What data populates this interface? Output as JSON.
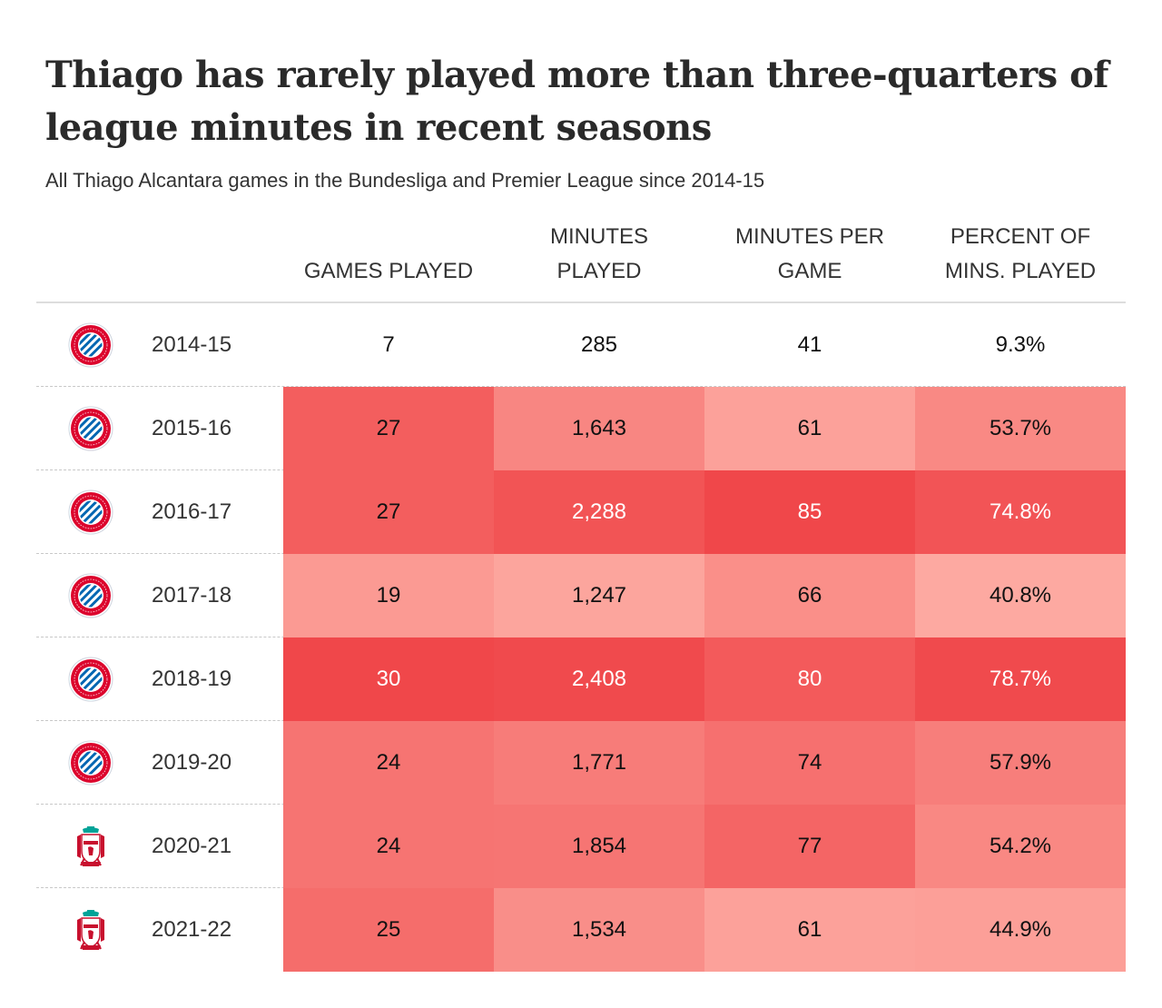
{
  "title": "Thiago has rarely played more than three-quarters of league minutes in recent seasons",
  "subtitle": "All Thiago Alcantara games in the Bundesliga and Premier League since 2014-15",
  "columns": [
    {
      "key": "games",
      "lines": [
        "",
        "GAMES PLAYED"
      ]
    },
    {
      "key": "minutes",
      "lines": [
        "MINUTES",
        "PLAYED"
      ]
    },
    {
      "key": "mpg",
      "lines": [
        "MINUTES PER",
        "GAME"
      ]
    },
    {
      "key": "pct",
      "lines": [
        "PERCENT OF",
        "MINS. PLAYED"
      ]
    }
  ],
  "chart_data": {
    "type": "table",
    "columns": [
      "GAMES PLAYED",
      "MINUTES PLAYED",
      "MINUTES PER GAME",
      "PERCENT OF MINS. PLAYED"
    ],
    "rows": [
      {
        "club_icon": "bayern-munich-crest-icon",
        "season": "2014-15",
        "games": "7",
        "minutes": "285",
        "mpg": "41",
        "pct": "9.3%"
      },
      {
        "club_icon": "bayern-munich-crest-icon",
        "season": "2015-16",
        "games": "27",
        "minutes": "1,643",
        "mpg": "61",
        "pct": "53.7%"
      },
      {
        "club_icon": "bayern-munich-crest-icon",
        "season": "2016-17",
        "games": "27",
        "minutes": "2,288",
        "mpg": "85",
        "pct": "74.8%"
      },
      {
        "club_icon": "bayern-munich-crest-icon",
        "season": "2017-18",
        "games": "19",
        "minutes": "1,247",
        "mpg": "66",
        "pct": "40.8%"
      },
      {
        "club_icon": "bayern-munich-crest-icon",
        "season": "2018-19",
        "games": "30",
        "minutes": "2,408",
        "mpg": "80",
        "pct": "78.7%"
      },
      {
        "club_icon": "bayern-munich-crest-icon",
        "season": "2019-20",
        "games": "24",
        "minutes": "1,771",
        "mpg": "74",
        "pct": "57.9%"
      },
      {
        "club_icon": "liverpool-crest-icon",
        "season": "2020-21",
        "games": "24",
        "minutes": "1,854",
        "mpg": "77",
        "pct": "54.2%"
      },
      {
        "club_icon": "liverpool-crest-icon",
        "season": "2021-22",
        "games": "25",
        "minutes": "1,534",
        "mpg": "61",
        "pct": "44.9%"
      }
    ],
    "color_scale": {
      "games": {
        "min": 15,
        "max": 30
      },
      "minutes": {
        "min": 1000,
        "max": 2450
      },
      "mpg": {
        "min": 55,
        "max": 85
      },
      "pct": {
        "min": 35,
        "max": 80
      },
      "low_color": "#ffb8ae",
      "high_color": "#f0474a",
      "blank_below_min": true
    },
    "colors": {
      "dark_text": "#111111",
      "light_text": "#ffffff",
      "bayern_red": "#dc052d",
      "bayern_blue": "#0066b2",
      "liverpool_red": "#c8102e",
      "liverpool_green": "#00a398"
    }
  }
}
